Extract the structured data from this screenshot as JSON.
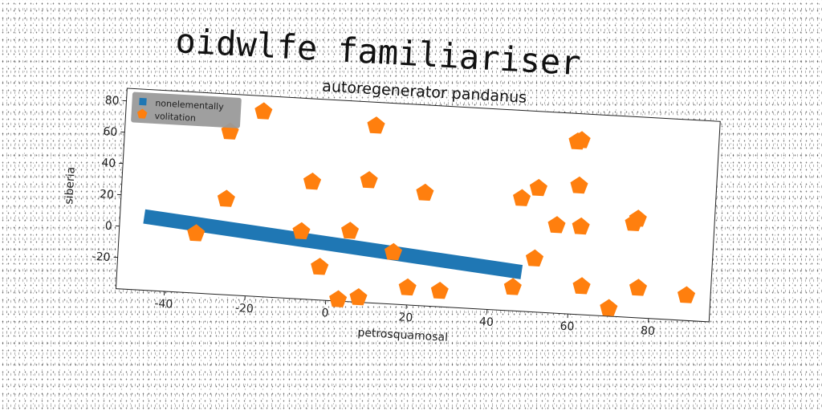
{
  "main_title": "oidwlfe familiariser",
  "colors": {
    "series1": "#1f77b4",
    "series2": "#ff7f0e",
    "legend_bg": "#9a9a9a"
  },
  "chart_data": {
    "type": "scatter",
    "title": "autoregenerator pandanus",
    "xlabel": "petrosquamosal",
    "ylabel": "siberia",
    "xlim": [
      -52,
      95
    ],
    "ylim": [
      -40,
      88
    ],
    "xticks": [
      -40,
      -20,
      0,
      20,
      40,
      60,
      80
    ],
    "yticks": [
      -20,
      0,
      20,
      40,
      60,
      80
    ],
    "grid": false,
    "legend_position": "top-left",
    "series": [
      {
        "name": "nonelementally",
        "type": "line",
        "marker": "square",
        "x": [
          -46,
          48
        ],
        "y": [
          7,
          -15
        ]
      },
      {
        "name": "volitation",
        "type": "scatter",
        "marker": "pentagon",
        "x": [
          -33,
          -26,
          -26,
          -18,
          -7,
          -5,
          -2,
          3,
          5,
          8,
          9,
          10,
          16,
          20,
          23,
          28,
          46,
          47,
          51,
          51,
          56,
          60,
          61,
          61,
          62,
          63,
          70,
          75,
          76,
          77,
          89
        ],
        "y": [
          -2,
          64,
          21,
          78,
          3,
          35,
          -19,
          -39,
          5,
          -37,
          38,
          73,
          -7,
          -29,
          32,
          -30,
          -25,
          32,
          -6,
          39,
          16,
          70,
          71,
          42,
          16,
          -22,
          -35,
          20,
          23,
          -21,
          -24
        ]
      }
    ]
  }
}
